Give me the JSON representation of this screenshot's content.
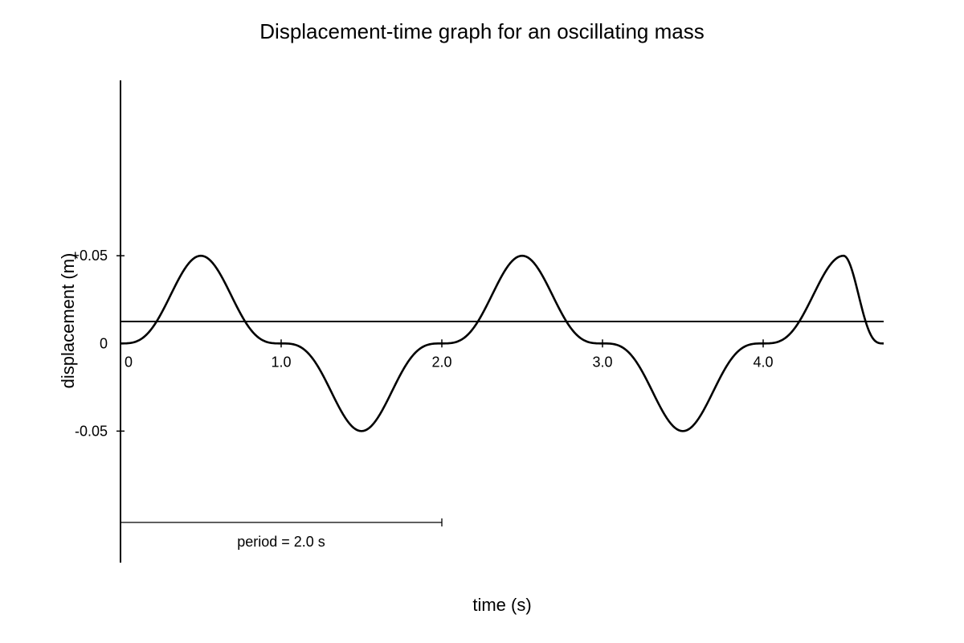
{
  "chart_data": {
    "type": "line",
    "title": "Displacement-time graph for an oscillating mass",
    "xlabel": "time (s)",
    "ylabel": "displacement (m)",
    "xlim": [
      0,
      4.75
    ],
    "ylim": [
      -0.125,
      0.15
    ],
    "x_ticks": [
      {
        "value": 0,
        "label": "0"
      },
      {
        "value": 1.0,
        "label": "1.0"
      },
      {
        "value": 2.0,
        "label": "2.0"
      },
      {
        "value": 3.0,
        "label": "3.0"
      },
      {
        "value": 4.0,
        "label": "4.0"
      }
    ],
    "y_ticks": [
      {
        "value": 0.05,
        "label": "+0.05"
      },
      {
        "value": 0,
        "label": "0"
      },
      {
        "value": -0.05,
        "label": "-0.05"
      }
    ],
    "series": [
      {
        "color": "#000000",
        "x": [
          0,
          0.25,
          0.5,
          0.75,
          1.0,
          1.25,
          1.5,
          1.75,
          2.0,
          2.25,
          2.5,
          2.75,
          3.0,
          3.25,
          3.5,
          3.75,
          4.0,
          4.25,
          4.5,
          4.75
        ],
        "y": [
          0,
          0.025,
          0.05,
          0.025,
          0,
          -0.025,
          -0.05,
          -0.025,
          0,
          0.025,
          0.05,
          0.025,
          0,
          -0.025,
          -0.05,
          -0.025,
          0,
          0.025,
          0.05,
          0
        ]
      }
    ],
    "annotations": [
      {
        "text": "period = 2.0 s",
        "x_start": 0,
        "x_end": 2.0
      }
    ],
    "grid": false,
    "legend": "none"
  }
}
